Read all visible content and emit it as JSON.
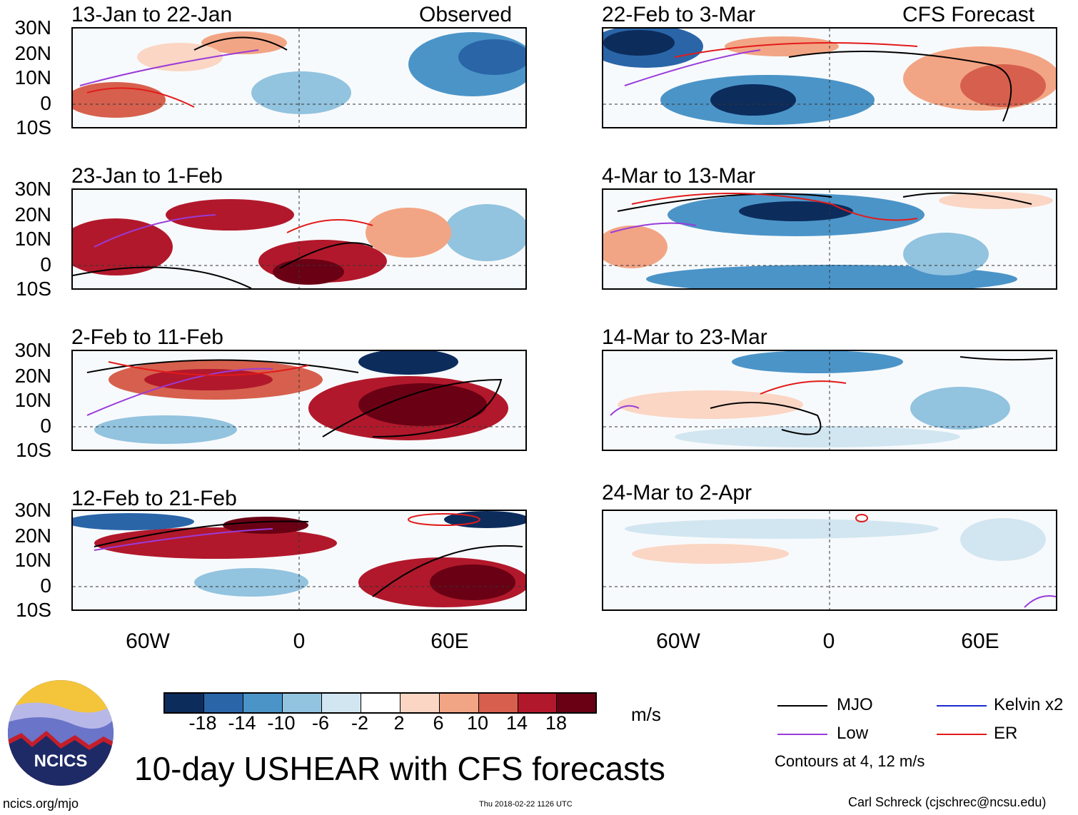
{
  "panels": {
    "p0": {
      "title": "13-Jan to 22-Jan",
      "tag": "Observed"
    },
    "p1": {
      "title": "23-Jan to 1-Feb"
    },
    "p2": {
      "title": "2-Feb to 11-Feb"
    },
    "p3": {
      "title": "12-Feb to 21-Feb"
    },
    "p4": {
      "title": "22-Feb to 3-Mar",
      "tag": "CFS Forecast"
    },
    "p5": {
      "title": "4-Mar to 13-Mar"
    },
    "p6": {
      "title": "14-Mar to 23-Mar"
    },
    "p7": {
      "title": "24-Mar to 2-Apr"
    }
  },
  "lat_labels": [
    "30N",
    "20N",
    "10N",
    "0",
    "10S"
  ],
  "lon_labels": [
    "60W",
    "0",
    "60E"
  ],
  "colorbar": {
    "unit": "m/s",
    "colors": [
      "#0c2c5c",
      "#2a65a8",
      "#4b94c8",
      "#92c3df",
      "#d2e6f1",
      "#ffffff",
      "#fbd6c4",
      "#f2a584",
      "#d6604d",
      "#b2182b",
      "#6a0014"
    ],
    "ticks": [
      "-18",
      "-14",
      "-10",
      "-6",
      "-2",
      "2",
      "6",
      "10",
      "14",
      "18"
    ]
  },
  "legend": {
    "mjo": {
      "label": "MJO",
      "color": "#000000"
    },
    "kelvin": {
      "label": "Kelvin x2",
      "color": "#1c2bd0"
    },
    "low": {
      "label": "Low",
      "color": "#9a3bd9"
    },
    "er": {
      "label": "ER",
      "color": "#e21a1a"
    },
    "contours_note": "Contours at 4, 12 m/s"
  },
  "main_title": "10-day USHEAR with CFS forecasts",
  "logo_text": "NCICS",
  "footer": {
    "url": "ncics.org/mjo",
    "timestamp": "Thu 2018-02-22 1126 UTC",
    "author": "Carl Schreck (cjschrec@ncsu.edu)"
  }
}
